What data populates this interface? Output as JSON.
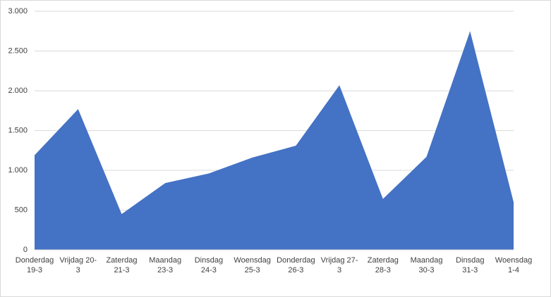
{
  "chart_data": {
    "type": "area",
    "categories": [
      "Donderdag 19-3",
      "Vrijdag 20-3",
      "Zaterdag 21-3",
      "Maandag 23-3",
      "Dinsdag 24-3",
      "Woensdag 25-3",
      "Donderdag 26-3",
      "Vrijdag 27-3",
      "Zaterdag 28-3",
      "Maandag 30-3",
      "Dinsdag 31-3",
      "Woensdag 1-4"
    ],
    "values": [
      1190,
      1770,
      450,
      840,
      960,
      1160,
      1310,
      2070,
      640,
      1170,
      2750,
      600
    ],
    "color": "#4472c4",
    "ylim": [
      0,
      3000
    ],
    "yticks": [
      0,
      500,
      {
        "value": 1000,
        "label": "1.000"
      },
      {
        "value": 1500,
        "label": "1.500"
      },
      {
        "value": 2000,
        "label": "2.000"
      },
      {
        "value": 2500,
        "label": "2.500"
      },
      {
        "value": 3000,
        "label": "3.000"
      }
    ],
    "grid": true
  }
}
